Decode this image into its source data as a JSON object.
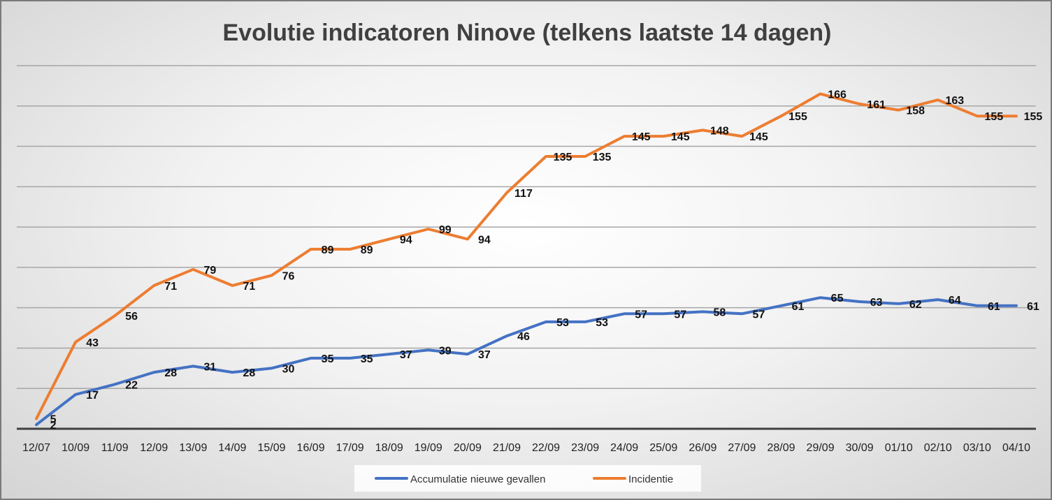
{
  "chart_data": {
    "type": "line",
    "title": "Evolutie indicatoren Ninove (telkens laatste 14 dagen)",
    "xlabel": "",
    "ylabel": "",
    "ylim": [
      0,
      180
    ],
    "grid": true,
    "legend_position": "bottom",
    "categories": [
      "12/07",
      "10/09",
      "11/09",
      "12/09",
      "13/09",
      "14/09",
      "15/09",
      "16/09",
      "17/09",
      "18/09",
      "19/09",
      "20/09",
      "21/09",
      "22/09",
      "23/09",
      "24/09",
      "25/09",
      "26/09",
      "27/09",
      "28/09",
      "29/09",
      "30/09",
      "01/10",
      "02/10",
      "03/10",
      "04/10"
    ],
    "series": [
      {
        "name": "Accumulatie nieuwe gevallen",
        "color": "#4472c4",
        "values": [
          2,
          17,
          22,
          28,
          31,
          28,
          30,
          35,
          35,
          37,
          39,
          37,
          46,
          53,
          53,
          57,
          57,
          58,
          57,
          61,
          65,
          63,
          62,
          64,
          61,
          61
        ]
      },
      {
        "name": "Incidentie",
        "color": "#ed7d31",
        "values": [
          5,
          43,
          56,
          71,
          79,
          71,
          76,
          89,
          89,
          94,
          99,
          94,
          117,
          135,
          135,
          145,
          145,
          148,
          145,
          155,
          166,
          161,
          158,
          163,
          155,
          155
        ]
      }
    ]
  }
}
